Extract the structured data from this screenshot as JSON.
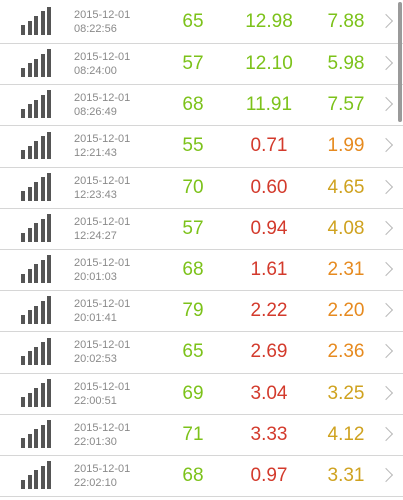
{
  "colors": {
    "good": "#7cc21a",
    "bad": "#d33a2c",
    "medium": "#e68a1f",
    "ok": "#cfa21f"
  },
  "rows": [
    {
      "date": "2015-12-01",
      "time": "08:22:56",
      "v1": "65",
      "v2": "12.98",
      "v3": "7.88",
      "c1": "good",
      "c2": "good",
      "c3": "good"
    },
    {
      "date": "2015-12-01",
      "time": "08:24:00",
      "v1": "57",
      "v2": "12.10",
      "v3": "5.98",
      "c1": "good",
      "c2": "good",
      "c3": "good"
    },
    {
      "date": "2015-12-01",
      "time": "08:26:49",
      "v1": "68",
      "v2": "11.91",
      "v3": "7.57",
      "c1": "good",
      "c2": "good",
      "c3": "good"
    },
    {
      "date": "2015-12-01",
      "time": "12:21:43",
      "v1": "55",
      "v2": "0.71",
      "v3": "1.99",
      "c1": "good",
      "c2": "bad",
      "c3": "medium"
    },
    {
      "date": "2015-12-01",
      "time": "12:23:43",
      "v1": "70",
      "v2": "0.60",
      "v3": "4.65",
      "c1": "good",
      "c2": "bad",
      "c3": "ok"
    },
    {
      "date": "2015-12-01",
      "time": "12:24:27",
      "v1": "57",
      "v2": "0.94",
      "v3": "4.08",
      "c1": "good",
      "c2": "bad",
      "c3": "ok"
    },
    {
      "date": "2015-12-01",
      "time": "20:01:03",
      "v1": "68",
      "v2": "1.61",
      "v3": "2.31",
      "c1": "good",
      "c2": "bad",
      "c3": "medium"
    },
    {
      "date": "2015-12-01",
      "time": "20:01:41",
      "v1": "79",
      "v2": "2.22",
      "v3": "2.20",
      "c1": "good",
      "c2": "bad",
      "c3": "medium"
    },
    {
      "date": "2015-12-01",
      "time": "20:02:53",
      "v1": "65",
      "v2": "2.69",
      "v3": "2.36",
      "c1": "good",
      "c2": "bad",
      "c3": "medium"
    },
    {
      "date": "2015-12-01",
      "time": "22:00:51",
      "v1": "69",
      "v2": "3.04",
      "v3": "3.25",
      "c1": "good",
      "c2": "bad",
      "c3": "ok"
    },
    {
      "date": "2015-12-01",
      "time": "22:01:30",
      "v1": "71",
      "v2": "3.33",
      "v3": "4.12",
      "c1": "good",
      "c2": "bad",
      "c3": "ok"
    },
    {
      "date": "2015-12-01",
      "time": "22:02:10",
      "v1": "68",
      "v2": "0.97",
      "v3": "3.31",
      "c1": "good",
      "c2": "bad",
      "c3": "ok"
    }
  ]
}
